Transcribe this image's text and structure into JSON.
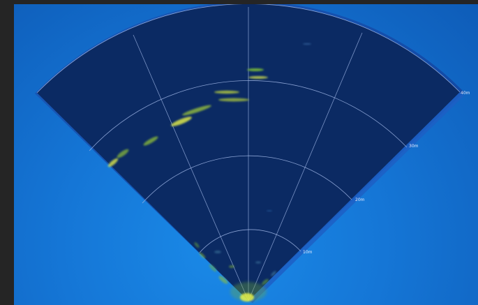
{
  "app": {
    "view": "sonar-sector-display"
  },
  "sonar": {
    "range_labels": [
      "10m",
      "20m",
      "30m",
      "40m"
    ],
    "colors": {
      "background": "#1576d6",
      "sector_fill": "#0b2a63",
      "grid_lines": "#9fb6e6",
      "echo_strong": "#e8f24a",
      "echo_weak": "#6fae3a"
    }
  }
}
